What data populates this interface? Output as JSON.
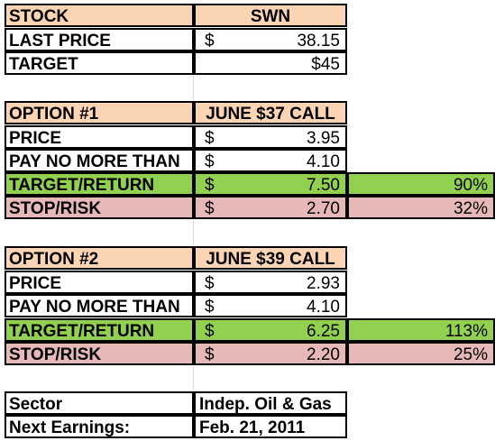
{
  "stock": {
    "header_label": "STOCK",
    "header_value": "SWN",
    "last_price_label": "LAST PRICE",
    "last_price_currency": "$",
    "last_price_value": "38.15",
    "target_label": "TARGET",
    "target_value": "$45"
  },
  "option1": {
    "header_label": "OPTION #1",
    "header_value": "JUNE $37 CALL",
    "price_label": "PRICE",
    "price_currency": "$",
    "price_value": "3.95",
    "pay_label": "PAY NO MORE THAN",
    "pay_currency": "$",
    "pay_value": "4.10",
    "target_label": "TARGET/RETURN",
    "target_currency": "$",
    "target_value": "7.50",
    "target_pct": "90%",
    "stop_label": "STOP/RISK",
    "stop_currency": "$",
    "stop_value": "2.70",
    "stop_pct": "32%"
  },
  "option2": {
    "header_label": "OPTION #2",
    "header_value": "JUNE $39 CALL",
    "price_label": "PRICE",
    "price_currency": "$",
    "price_value": "2.93",
    "pay_label": "PAY NO MORE THAN",
    "pay_currency": "$",
    "pay_value": "4.10",
    "target_label": "TARGET/RETURN",
    "target_currency": "$",
    "target_value": "6.25",
    "target_pct": "113%",
    "stop_label": "STOP/RISK",
    "stop_currency": "$",
    "stop_value": "2.20",
    "stop_pct": "25%"
  },
  "info": {
    "sector_label": "Sector",
    "sector_value": "Indep. Oil & Gas",
    "earnings_label": "Next Earnings:",
    "earnings_value": "Feb. 21, 2011"
  },
  "colors": {
    "header_fill": "#fbd4b4",
    "target_fill": "#92d050",
    "stop_fill": "#e6b9b8"
  }
}
